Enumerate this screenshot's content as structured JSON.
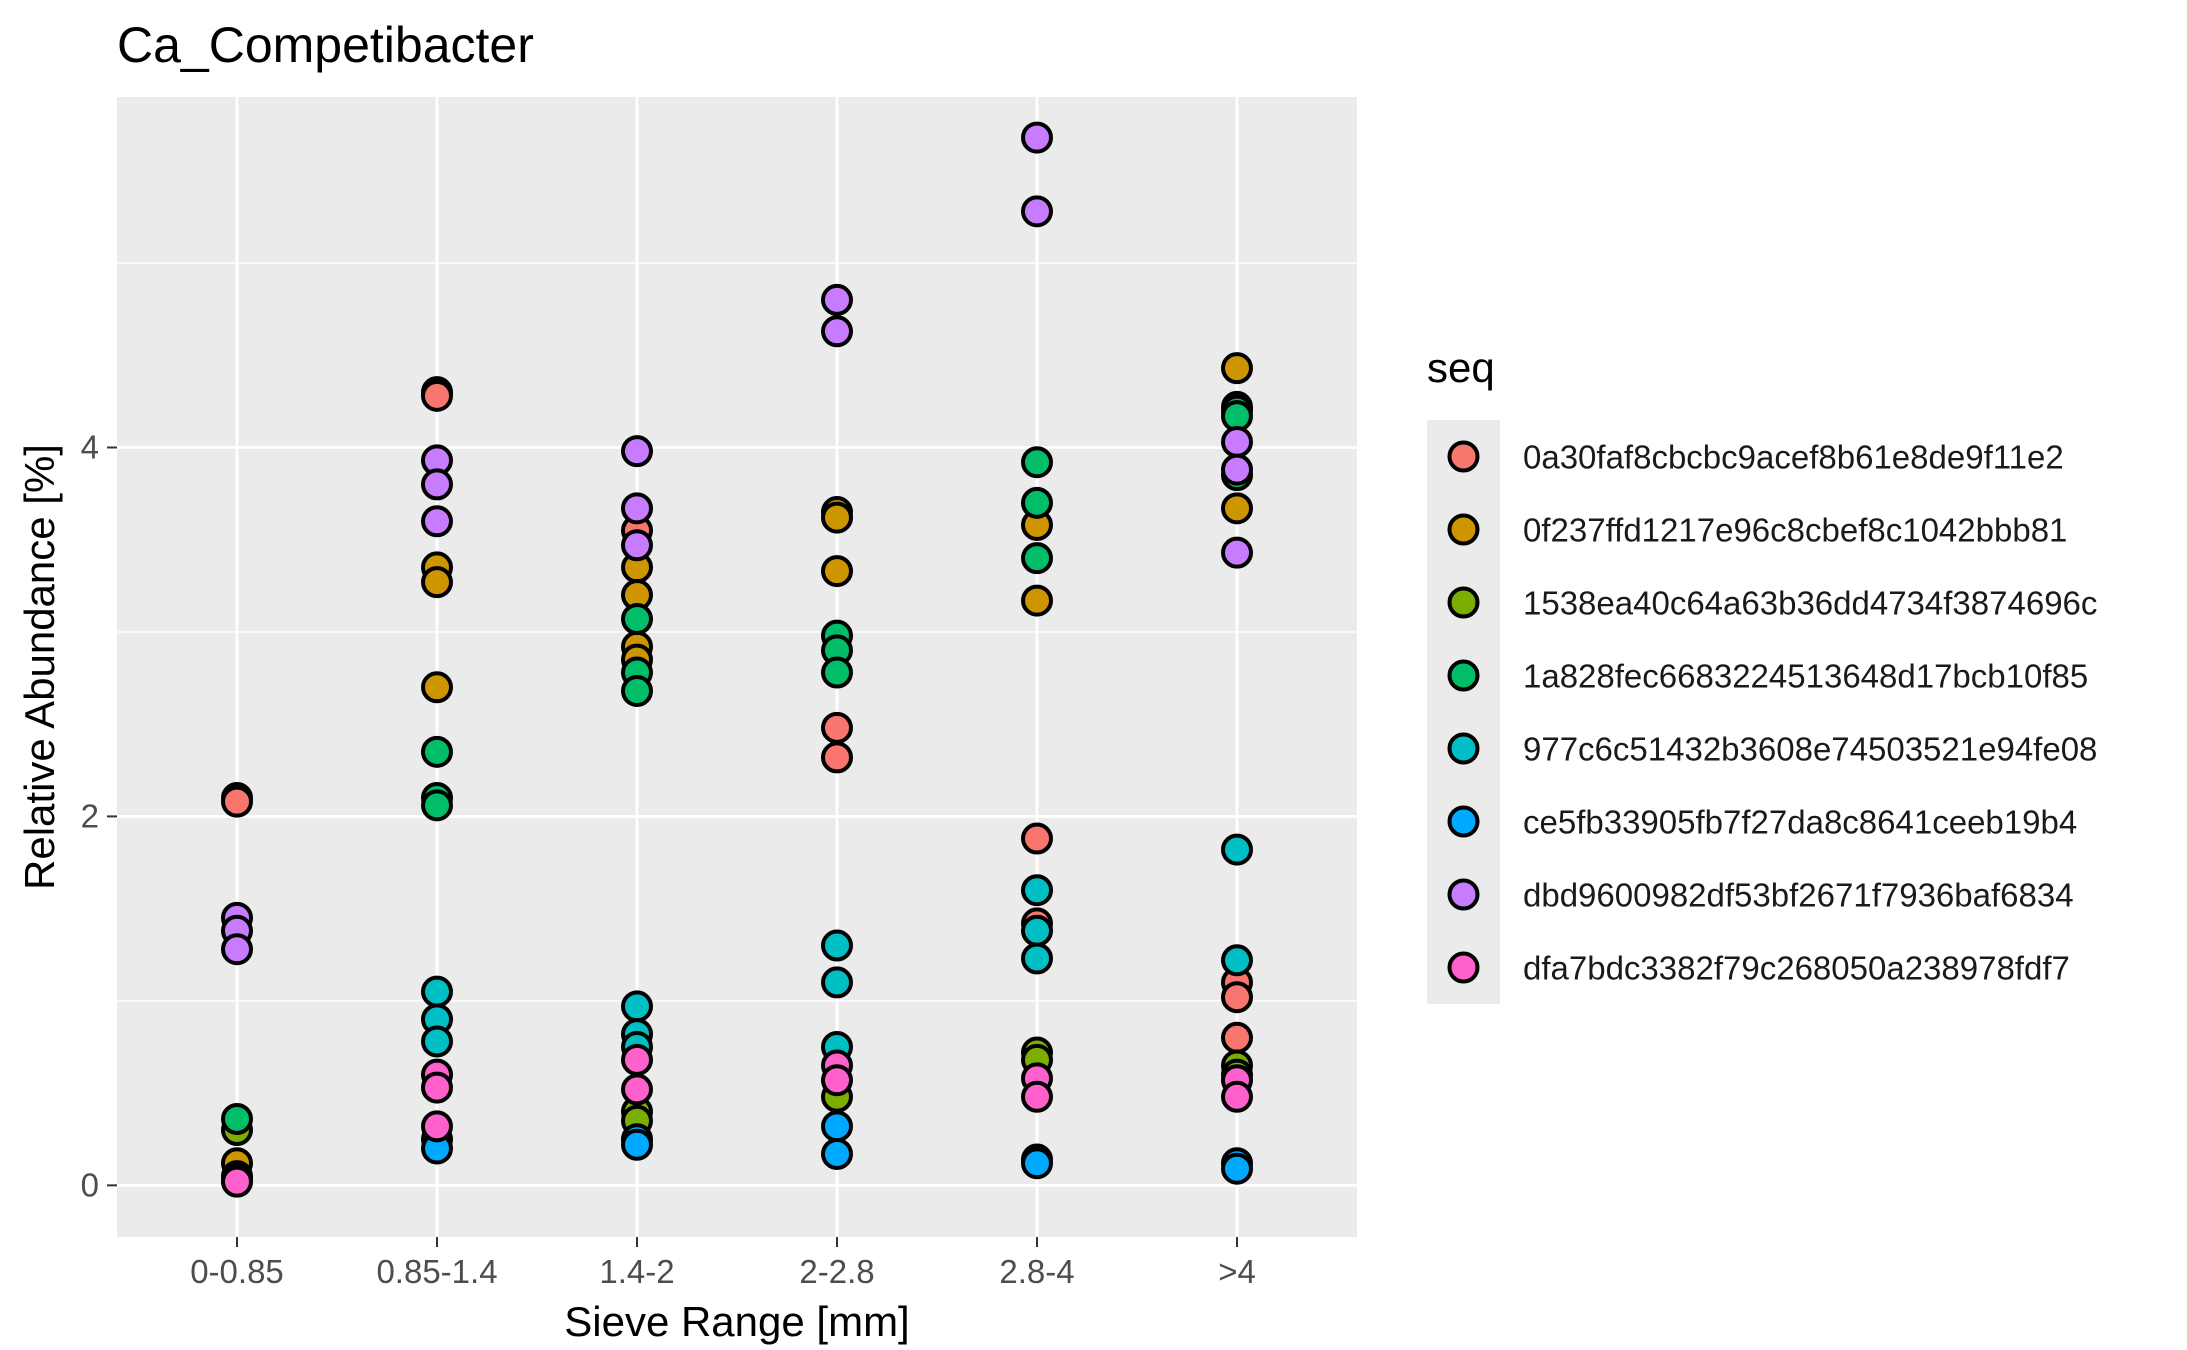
{
  "chart_data": {
    "type": "scatter",
    "title": "Ca_Competibacter",
    "xlabel": "Sieve Range [mm]",
    "ylabel": "Relative Abundance [%]",
    "categories": [
      "0-0.85",
      "0.85-1.4",
      "1.4-2",
      "2-2.8",
      "2.8-4",
      ">4"
    ],
    "ylim": [
      -0.28,
      5.9
    ],
    "yticks": [
      0,
      2,
      4
    ],
    "grid": true,
    "legend": {
      "title": "seq",
      "placement": "right"
    },
    "series": [
      {
        "name": "0a30faf8cbcbc9acef8b61e8de9f11e2",
        "color": "#F8766D",
        "points": [
          [
            "0-0.85",
            2.1
          ],
          [
            "0-0.85",
            2.08
          ],
          [
            "0.85-1.4",
            4.3
          ],
          [
            "0.85-1.4",
            4.28
          ],
          [
            "1.4-2",
            3.55
          ],
          [
            "2-2.8",
            2.48
          ],
          [
            "2-2.8",
            2.32
          ],
          [
            "2.8-4",
            1.88
          ],
          [
            "2.8-4",
            1.42
          ],
          [
            ">4",
            1.1
          ],
          [
            ">4",
            1.02
          ],
          [
            ">4",
            0.8
          ]
        ]
      },
      {
        "name": "0f237ffd1217e96c8cbef8c1042bbb81",
        "color": "#CD9600",
        "points": [
          [
            "0-0.85",
            0.12
          ],
          [
            "0-0.85",
            0.05
          ],
          [
            "0.85-1.4",
            3.35
          ],
          [
            "0.85-1.4",
            3.27
          ],
          [
            "0.85-1.4",
            2.7
          ],
          [
            "1.4-2",
            3.35
          ],
          [
            "1.4-2",
            3.2
          ],
          [
            "1.4-2",
            2.92
          ],
          [
            "1.4-2",
            2.85
          ],
          [
            "2-2.8",
            3.65
          ],
          [
            "2-2.8",
            3.62
          ],
          [
            "2-2.8",
            3.33
          ],
          [
            "2.8-4",
            3.58
          ],
          [
            "2.8-4",
            3.17
          ],
          [
            ">4",
            4.43
          ],
          [
            ">4",
            4.22
          ],
          [
            ">4",
            3.67
          ]
        ]
      },
      {
        "name": "1538ea40c64a63b36dd4734f3874696c",
        "color": "#7CAE00",
        "points": [
          [
            "0-0.85",
            0.3
          ],
          [
            "1.4-2",
            0.4
          ],
          [
            "1.4-2",
            0.35
          ],
          [
            "2-2.8",
            0.48
          ],
          [
            "2.8-4",
            0.72
          ],
          [
            "2.8-4",
            0.68
          ],
          [
            ">4",
            0.65
          ],
          [
            ">4",
            0.6
          ]
        ]
      },
      {
        "name": "1a828fec6683224513648d17bcb10f85",
        "color": "#00BE67",
        "points": [
          [
            "0-0.85",
            0.36
          ],
          [
            "0.85-1.4",
            2.35
          ],
          [
            "0.85-1.4",
            2.1
          ],
          [
            "0.85-1.4",
            2.06
          ],
          [
            "1.4-2",
            3.07
          ],
          [
            "1.4-2",
            2.78
          ],
          [
            "1.4-2",
            2.68
          ],
          [
            "2-2.8",
            2.98
          ],
          [
            "2-2.8",
            2.9
          ],
          [
            "2-2.8",
            2.78
          ],
          [
            "2.8-4",
            3.92
          ],
          [
            "2.8-4",
            3.7
          ],
          [
            "2.8-4",
            3.4
          ],
          [
            ">4",
            4.2
          ],
          [
            ">4",
            4.17
          ],
          [
            ">4",
            3.85
          ]
        ]
      },
      {
        "name": "977c6c51432b3608e74503521e94fe08",
        "color": "#00BFC4",
        "points": [
          [
            "0.85-1.4",
            1.05
          ],
          [
            "0.85-1.4",
            0.9
          ],
          [
            "0.85-1.4",
            0.78
          ],
          [
            "1.4-2",
            0.97
          ],
          [
            "1.4-2",
            0.82
          ],
          [
            "1.4-2",
            0.75
          ],
          [
            "2-2.8",
            1.3
          ],
          [
            "2-2.8",
            1.1
          ],
          [
            "2-2.8",
            0.75
          ],
          [
            "2.8-4",
            1.6
          ],
          [
            "2.8-4",
            1.38
          ],
          [
            "2.8-4",
            1.23
          ],
          [
            ">4",
            1.82
          ],
          [
            ">4",
            1.22
          ]
        ]
      },
      {
        "name": "ce5fb33905fb7f27da8c8641ceeb19b4",
        "color": "#00A9FF",
        "points": [
          [
            "0.85-1.4",
            0.25
          ],
          [
            "0.85-1.4",
            0.2
          ],
          [
            "1.4-2",
            0.25
          ],
          [
            "1.4-2",
            0.22
          ],
          [
            "2-2.8",
            0.32
          ],
          [
            "2-2.8",
            0.17
          ],
          [
            "2.8-4",
            0.14
          ],
          [
            "2.8-4",
            0.12
          ],
          [
            ">4",
            0.12
          ],
          [
            ">4",
            0.09
          ]
        ]
      },
      {
        "name": "dbd9600982df53bf2671f7936baf6834",
        "color": "#C77CFF",
        "points": [
          [
            "0-0.85",
            1.45
          ],
          [
            "0-0.85",
            1.38
          ],
          [
            "0-0.85",
            1.28
          ],
          [
            "0.85-1.4",
            3.93
          ],
          [
            "0.85-1.4",
            3.8
          ],
          [
            "0.85-1.4",
            3.6
          ],
          [
            "1.4-2",
            3.98
          ],
          [
            "1.4-2",
            3.67
          ],
          [
            "1.4-2",
            3.47
          ],
          [
            "2-2.8",
            4.8
          ],
          [
            "2-2.8",
            4.63
          ],
          [
            "2.8-4",
            5.68
          ],
          [
            "2.8-4",
            5.28
          ],
          [
            ">4",
            4.03
          ],
          [
            ">4",
            3.88
          ],
          [
            ">4",
            3.43
          ]
        ]
      },
      {
        "name": "dfa7bdc3382f79c268050a238978fdf7",
        "color": "#FF61CC",
        "points": [
          [
            "0-0.85",
            0.03
          ],
          [
            "0-0.85",
            0.02
          ],
          [
            "0.85-1.4",
            0.6
          ],
          [
            "0.85-1.4",
            0.53
          ],
          [
            "0.85-1.4",
            0.32
          ],
          [
            "1.4-2",
            0.68
          ],
          [
            "1.4-2",
            0.52
          ],
          [
            "2-2.8",
            0.65
          ],
          [
            "2-2.8",
            0.57
          ],
          [
            "2.8-4",
            0.58
          ],
          [
            "2.8-4",
            0.48
          ],
          [
            ">4",
            0.57
          ],
          [
            ">4",
            0.48
          ]
        ]
      }
    ]
  }
}
